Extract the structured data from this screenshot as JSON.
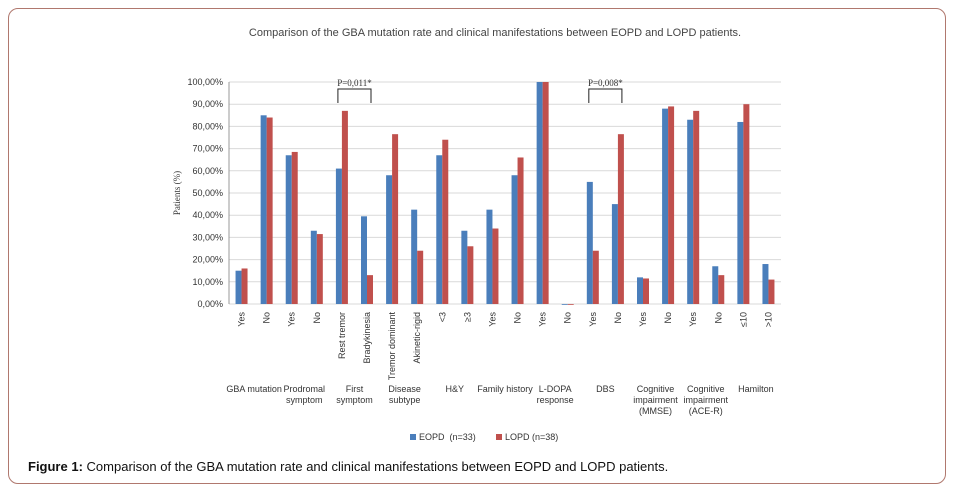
{
  "chart_data": {
    "type": "bar",
    "title": "Comparison of the GBA mutation rate and clinical manifestations between EOPD and LOPD patients.",
    "y_label": "Patients (%)",
    "categories": [
      "Yes",
      "No",
      "Yes",
      "No",
      "Rest tremor",
      "Bradykinesia",
      "Tremor dominant",
      "Akinetic-rigid",
      "<3",
      "≥3",
      "Yes",
      "No",
      "Yes",
      "No",
      "Yes",
      "No",
      "Yes",
      "No",
      "Yes",
      "No",
      "≤10",
      ">10"
    ],
    "groups": [
      "GBA mutation",
      "Prodromal symptom",
      "First symptom",
      "Disease subtype",
      "H&Y",
      "Family history",
      "L-DOPA response",
      "DBS",
      "Cognitive impairment (MMSE)",
      "Cognitive impairment (ACE-R)",
      "Hamilton"
    ],
    "series": [
      {
        "name": "EOPD  (n=33)",
        "color": "#4a7ebb",
        "values": [
          15,
          85,
          67,
          33,
          61,
          39.5,
          58,
          42.5,
          67,
          33,
          42.5,
          58,
          100,
          0,
          55,
          45,
          12,
          88,
          83,
          17,
          82,
          18
        ]
      },
      {
        "name": "LOPD (n=38)",
        "color": "#c0504d",
        "values": [
          16,
          84,
          68.5,
          31.5,
          87,
          13,
          76.5,
          24,
          74,
          26,
          34,
          66,
          100,
          0,
          24,
          76.5,
          11.5,
          89,
          87,
          13,
          90,
          11
        ]
      }
    ],
    "annotations": [
      "P=0,011*",
      "P=0,008*"
    ],
    "ylim": [
      0,
      100
    ],
    "yticks": [
      {
        "value": 0,
        "label": "0,00%"
      },
      {
        "value": 10,
        "label": "10,00%"
      },
      {
        "value": 20,
        "label": "20,00%"
      },
      {
        "value": 30,
        "label": "30,00%"
      },
      {
        "value": 40,
        "label": "40,00%"
      },
      {
        "value": 50,
        "label": "50,00%"
      },
      {
        "value": 60,
        "label": "60,00%"
      },
      {
        "value": 70,
        "label": "70,00%"
      },
      {
        "value": 80,
        "label": "80,00%"
      },
      {
        "value": 90,
        "label": "90,00%"
      },
      {
        "value": 100,
        "label": "100,00%"
      }
    ],
    "grid": true,
    "legend": "bottom"
  },
  "caption": {
    "label": "Figure 1:",
    "text": "Comparison of the GBA mutation rate and clinical manifestations between EOPD and LOPD patients."
  }
}
